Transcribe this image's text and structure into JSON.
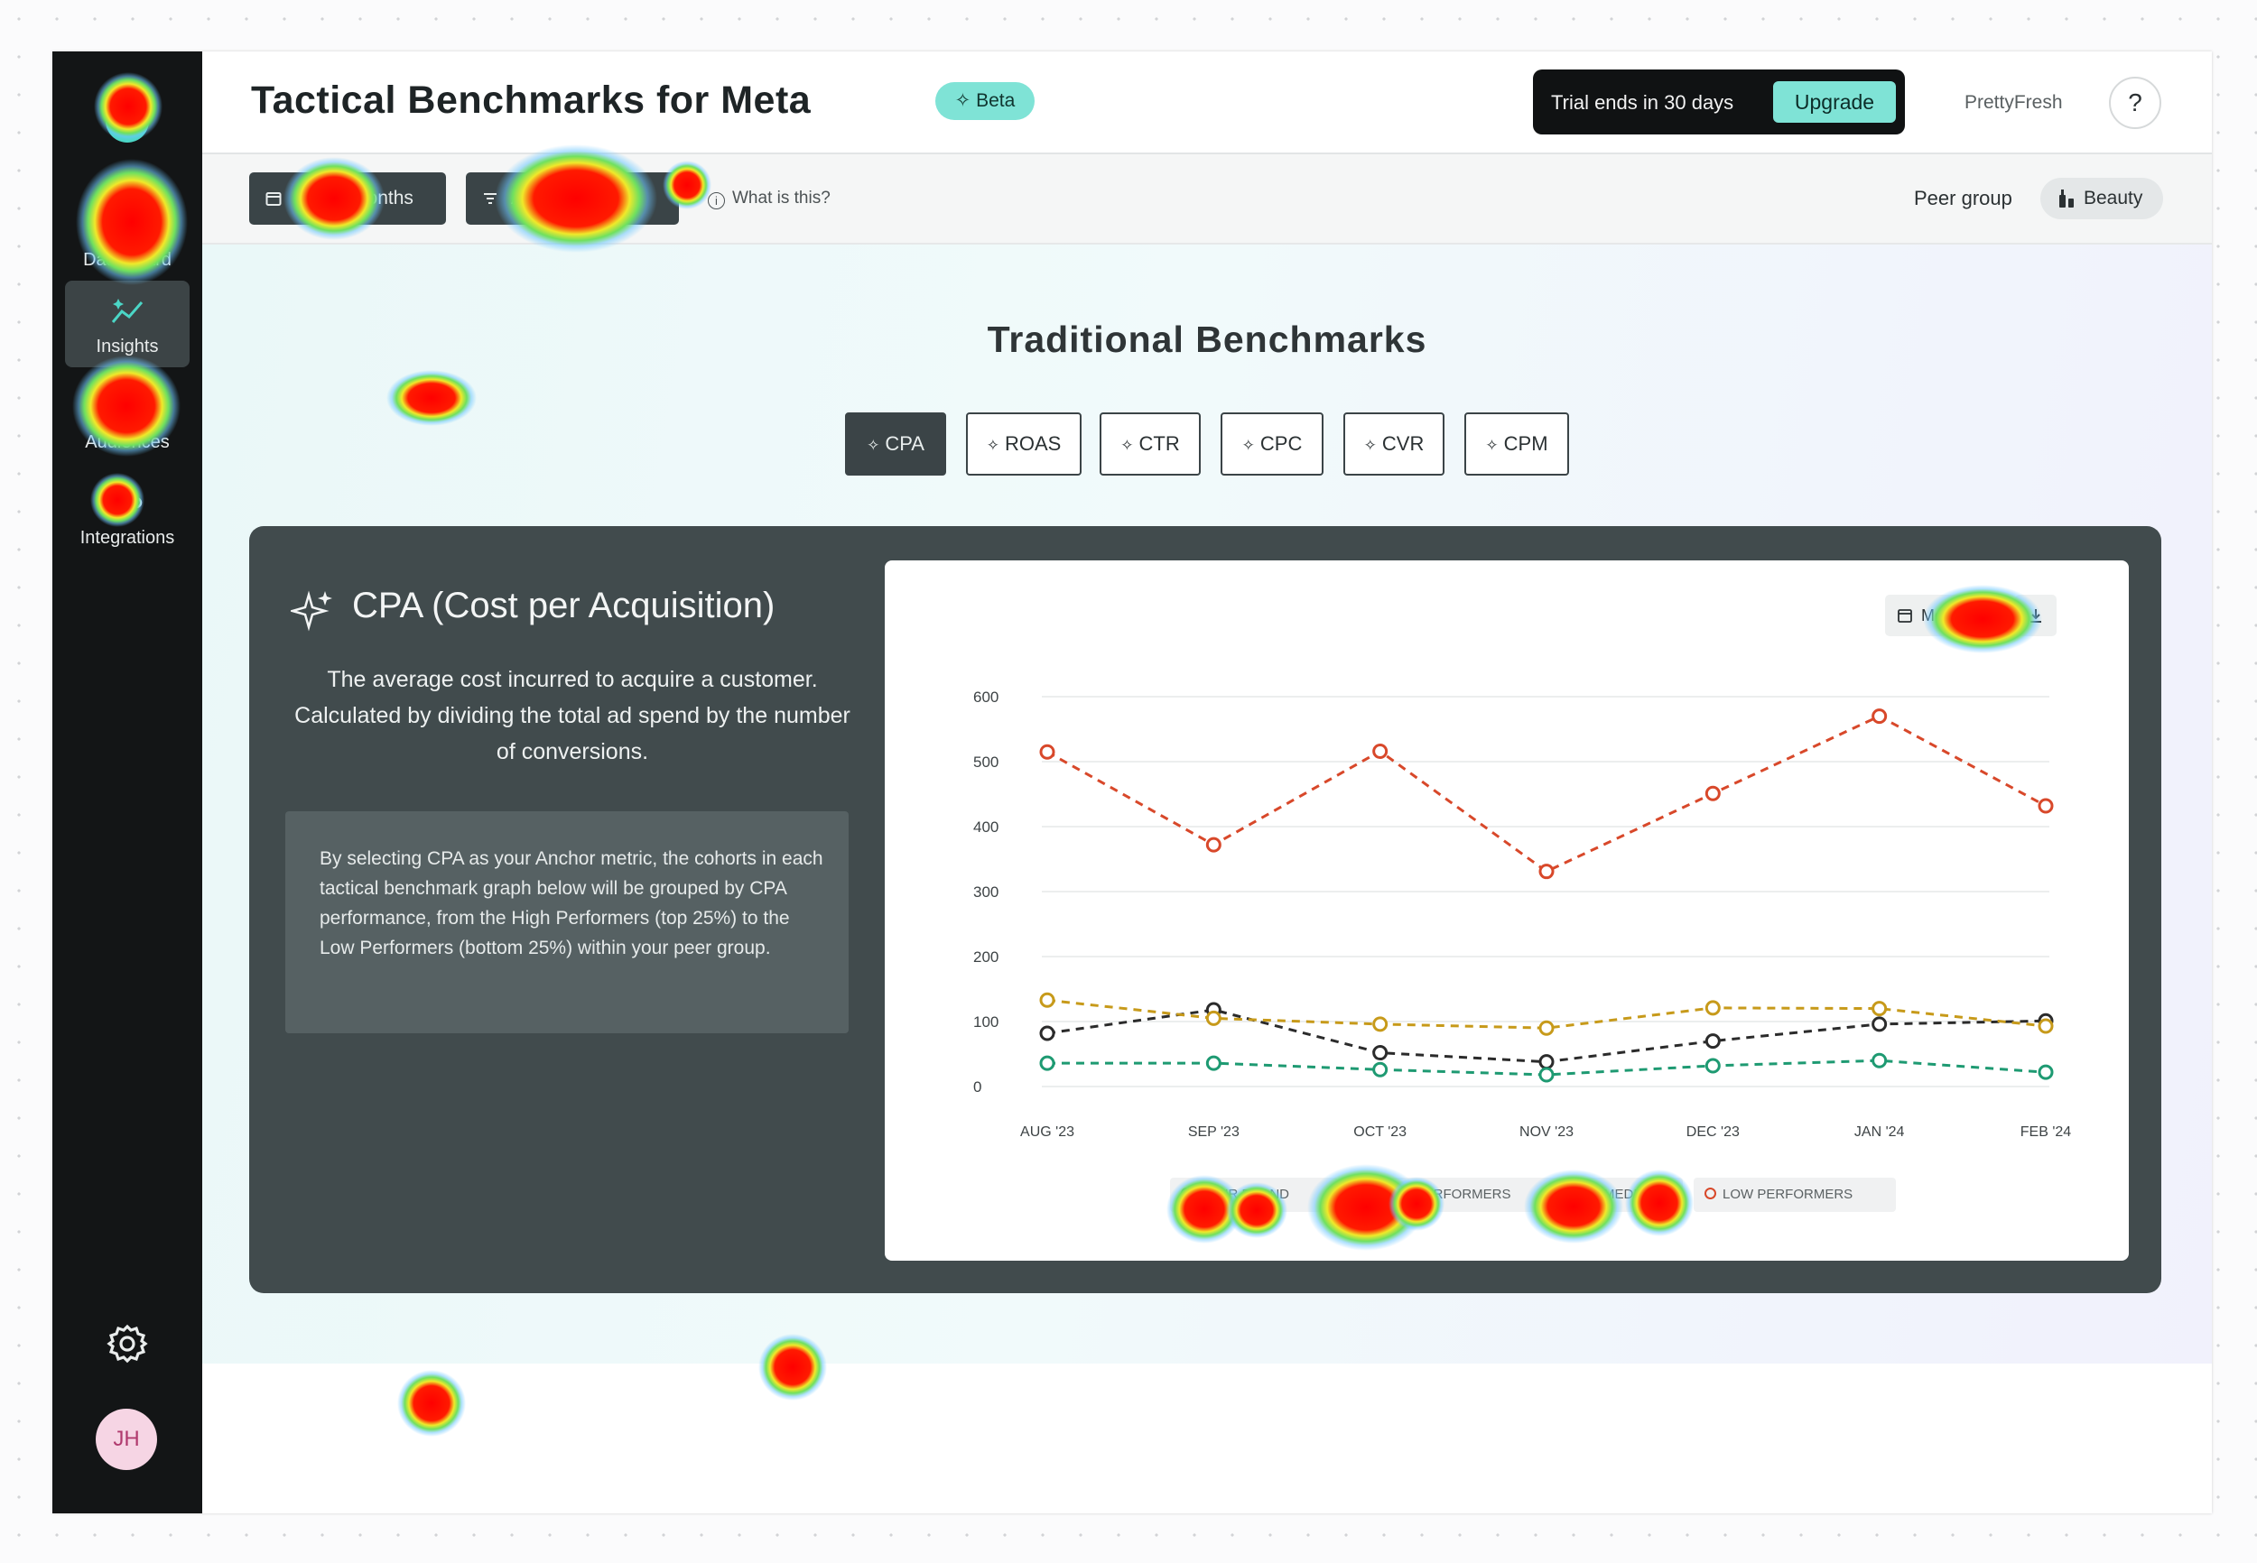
{
  "app": {
    "title": "Tactical Benchmarks for Meta",
    "beta_label": "Beta",
    "trial_text": "Trial ends in 30 days",
    "upgrade_label": "Upgrade",
    "account_name": "PrettyFresh",
    "help_label": "?"
  },
  "sidebar": {
    "items": [
      {
        "label": "Dashboard",
        "icon": "dashboard-icon"
      },
      {
        "label": "Insights",
        "icon": "insights-icon",
        "active": true
      },
      {
        "label": "Audiences",
        "icon": "audiences-icon"
      },
      {
        "label": "Integrations",
        "icon": "integrations-icon"
      }
    ],
    "settings_icon": "gear-icon",
    "user_initials": "JH"
  },
  "filters": {
    "date_range_label": "Last 6 months",
    "anchor_metric_label": "Anchor: CPA",
    "what_is_this": "What is this?",
    "peer_group_label": "Peer group",
    "peer_group_value": "Beauty"
  },
  "section": {
    "title": "Traditional Benchmarks",
    "tabs": [
      "CPA",
      "ROAS",
      "CTR",
      "CPC",
      "CVR",
      "CPM"
    ],
    "active_tab": "CPA"
  },
  "metric_card": {
    "title": "CPA (Cost per Acquisition)",
    "description": "The average cost incurred to acquire a customer. Calculated by dividing the total ad spend by the number of conversions.",
    "note": "By selecting CPA as your Anchor metric, the cohorts in each tactical benchmark graph below will be grouped by CPA performance, from the High Performers (top 25%) to the Low Performers (bottom 25%) within your peer group.",
    "date_chip_label": "Monthly",
    "download_icon": "download-icon"
  },
  "chart_data": {
    "type": "line",
    "x": [
      "AUG '23",
      "SEP '23",
      "OCT '23",
      "NOV '23",
      "DEC '23",
      "JAN '24",
      "FEB '24"
    ],
    "yticks": [
      0,
      100,
      200,
      300,
      400,
      500,
      600
    ],
    "ylim": [
      0,
      600
    ],
    "grid": true,
    "legend_position": "bottom-center",
    "series": [
      {
        "name": "YOUR BRAND",
        "color": "#2b2b2b",
        "values": [
          82,
          118,
          52,
          38,
          70,
          96,
          101
        ]
      },
      {
        "name": "HIGH PERFORMERS",
        "color": "#1e9a72",
        "values": [
          36,
          36,
          26,
          18,
          32,
          40,
          22
        ]
      },
      {
        "name": "MEDIAN",
        "color": "#c79a1a",
        "values": [
          133,
          105,
          96,
          90,
          121,
          120,
          93
        ]
      },
      {
        "name": "LOW PERFORMERS",
        "color": "#d8482a",
        "values": [
          515,
          372,
          516,
          331,
          451,
          570,
          432
        ]
      }
    ]
  }
}
